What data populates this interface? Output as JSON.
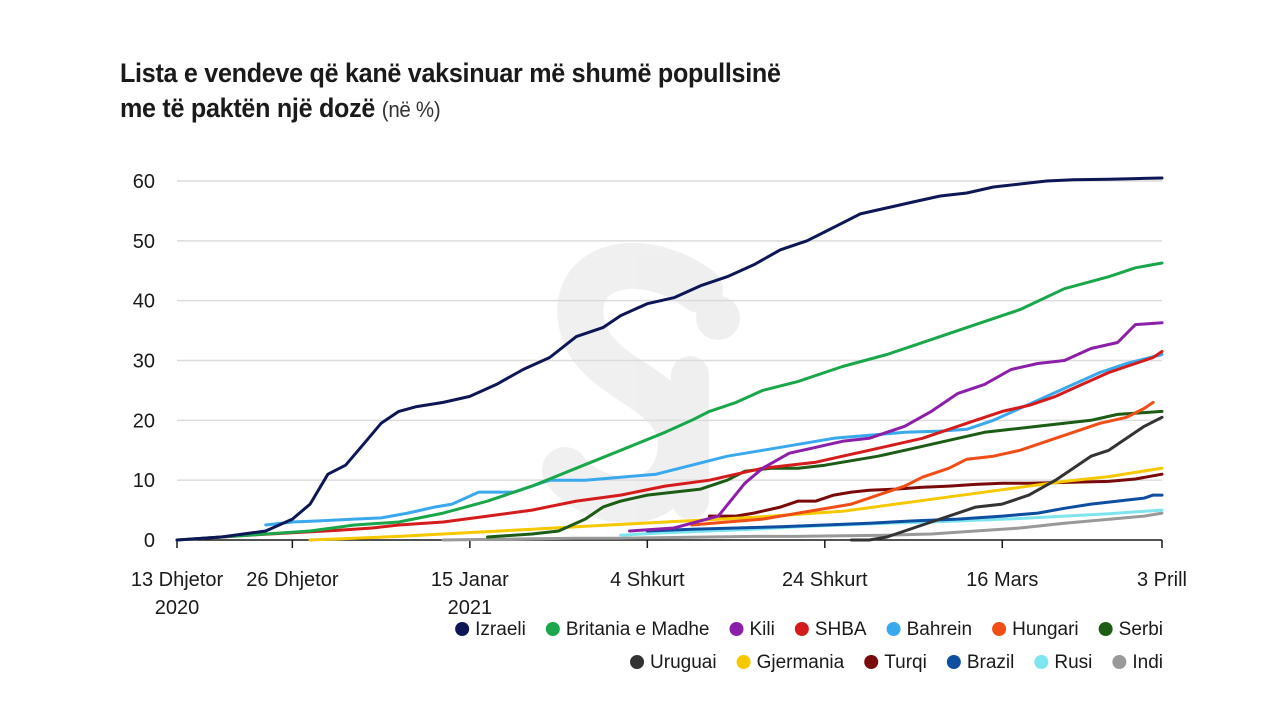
{
  "title": {
    "line1": "Lista e vendeve që kanë vaksinuar më shumë popullsinë",
    "line2": "me të paktën një dozë",
    "unit": "(në %)"
  },
  "chart_data": {
    "type": "line",
    "title": "Lista e vendeve që kanë vaksinuar më shumë popullsinë me të paktën një dozë (në %)",
    "ylim": [
      0,
      60
    ],
    "yticks": [
      0,
      10,
      20,
      30,
      40,
      50,
      60
    ],
    "xlim": [
      0,
      111
    ],
    "xticks": [
      {
        "x": 0,
        "label": [
          "13 Dhjetor",
          "2020"
        ]
      },
      {
        "x": 13,
        "label": [
          "26 Dhjetor"
        ]
      },
      {
        "x": 33,
        "label": [
          "15 Janar",
          "2021"
        ]
      },
      {
        "x": 53,
        "label": [
          "4 Shkurt"
        ]
      },
      {
        "x": 73,
        "label": [
          "24 Shkurt"
        ]
      },
      {
        "x": 93,
        "label": [
          "16 Mars"
        ]
      },
      {
        "x": 111,
        "label": [
          "3 Prill"
        ]
      }
    ],
    "grid": true,
    "legend": "bottom",
    "series": [
      {
        "name": "Izraeli",
        "color": "#0e1756",
        "points": [
          [
            0,
            0
          ],
          [
            5,
            0.5
          ],
          [
            10,
            1.5
          ],
          [
            13,
            3.5
          ],
          [
            15,
            6
          ],
          [
            17,
            11
          ],
          [
            19,
            12.5
          ],
          [
            21,
            16
          ],
          [
            23,
            19.5
          ],
          [
            25,
            21.5
          ],
          [
            27,
            22.3
          ],
          [
            30,
            23
          ],
          [
            33,
            24
          ],
          [
            36,
            26
          ],
          [
            39,
            28.5
          ],
          [
            42,
            30.5
          ],
          [
            45,
            34
          ],
          [
            48,
            35.5
          ],
          [
            50,
            37.5
          ],
          [
            53,
            39.5
          ],
          [
            56,
            40.5
          ],
          [
            59,
            42.5
          ],
          [
            62,
            44
          ],
          [
            65,
            46
          ],
          [
            68,
            48.5
          ],
          [
            71,
            50
          ],
          [
            73,
            51.5
          ],
          [
            75,
            53
          ],
          [
            77,
            54.5
          ],
          [
            80,
            55.5
          ],
          [
            83,
            56.5
          ],
          [
            86,
            57.5
          ],
          [
            89,
            58
          ],
          [
            92,
            59
          ],
          [
            95,
            59.5
          ],
          [
            98,
            60
          ],
          [
            101,
            60.2
          ],
          [
            105,
            60.3
          ],
          [
            108,
            60.4
          ],
          [
            111,
            60.5
          ]
        ]
      },
      {
        "name": "Britania e Madhe",
        "color": "#1aa64a",
        "points": [
          [
            0,
            0
          ],
          [
            5,
            0.5
          ],
          [
            10,
            1
          ],
          [
            15,
            1.5
          ],
          [
            20,
            2.5
          ],
          [
            25,
            3
          ],
          [
            30,
            4.5
          ],
          [
            35,
            6.5
          ],
          [
            40,
            9
          ],
          [
            45,
            12
          ],
          [
            50,
            15
          ],
          [
            55,
            18
          ],
          [
            58,
            20
          ],
          [
            60,
            21.5
          ],
          [
            63,
            23
          ],
          [
            66,
            25
          ],
          [
            70,
            26.5
          ],
          [
            75,
            29
          ],
          [
            80,
            31
          ],
          [
            85,
            33.5
          ],
          [
            90,
            36
          ],
          [
            95,
            38.5
          ],
          [
            100,
            42
          ],
          [
            105,
            44
          ],
          [
            108,
            45.5
          ],
          [
            111,
            46.3
          ]
        ]
      },
      {
        "name": "Kili",
        "color": "#8c1fa8",
        "points": [
          [
            51,
            1.5
          ],
          [
            56,
            2
          ],
          [
            61,
            4
          ],
          [
            64,
            9.5
          ],
          [
            66,
            12
          ],
          [
            69,
            14.5
          ],
          [
            72,
            15.5
          ],
          [
            75,
            16.5
          ],
          [
            78,
            17
          ],
          [
            82,
            19
          ],
          [
            85,
            21.5
          ],
          [
            88,
            24.5
          ],
          [
            91,
            26
          ],
          [
            94,
            28.5
          ],
          [
            97,
            29.5
          ],
          [
            100,
            30
          ],
          [
            103,
            32
          ],
          [
            106,
            33
          ],
          [
            108,
            36
          ],
          [
            111,
            36.3
          ]
        ]
      },
      {
        "name": "SHBA",
        "color": "#d41c1c",
        "points": [
          [
            3,
            0.3
          ],
          [
            8,
            0.8
          ],
          [
            13,
            1.2
          ],
          [
            18,
            1.6
          ],
          [
            22,
            2
          ],
          [
            25,
            2.5
          ],
          [
            30,
            3
          ],
          [
            35,
            4
          ],
          [
            40,
            5
          ],
          [
            45,
            6.5
          ],
          [
            50,
            7.5
          ],
          [
            55,
            9
          ],
          [
            60,
            10
          ],
          [
            63,
            11
          ],
          [
            66,
            12
          ],
          [
            69,
            12.5
          ],
          [
            72,
            13
          ],
          [
            75,
            14
          ],
          [
            78,
            15
          ],
          [
            81,
            16
          ],
          [
            84,
            17
          ],
          [
            87,
            18.5
          ],
          [
            90,
            20
          ],
          [
            93,
            21.5
          ],
          [
            96,
            22.5
          ],
          [
            99,
            24
          ],
          [
            102,
            26
          ],
          [
            105,
            28
          ],
          [
            108,
            29.5
          ],
          [
            110,
            30.5
          ],
          [
            111,
            31.5
          ]
        ]
      },
      {
        "name": "Bahrein",
        "color": "#3aa8ec",
        "points": [
          [
            10,
            2.5
          ],
          [
            13,
            3
          ],
          [
            16,
            3.2
          ],
          [
            20,
            3.5
          ],
          [
            23,
            3.7
          ],
          [
            26,
            4.5
          ],
          [
            29,
            5.5
          ],
          [
            31,
            6
          ],
          [
            34,
            8
          ],
          [
            38,
            8
          ],
          [
            42,
            10
          ],
          [
            46,
            10
          ],
          [
            50,
            10.5
          ],
          [
            54,
            11
          ],
          [
            58,
            12.5
          ],
          [
            62,
            14
          ],
          [
            66,
            15
          ],
          [
            70,
            16
          ],
          [
            74,
            17
          ],
          [
            78,
            17.5
          ],
          [
            82,
            18
          ],
          [
            86,
            18.2
          ],
          [
            89,
            18.5
          ],
          [
            92,
            20
          ],
          [
            95,
            22
          ],
          [
            98,
            24
          ],
          [
            101,
            26
          ],
          [
            104,
            28
          ],
          [
            107,
            29.5
          ],
          [
            111,
            31
          ]
        ]
      },
      {
        "name": "Hungari",
        "color": "#f14d17",
        "points": [
          [
            58,
            2.5
          ],
          [
            62,
            3
          ],
          [
            66,
            3.5
          ],
          [
            68,
            4
          ],
          [
            70,
            4.5
          ],
          [
            72,
            5
          ],
          [
            74,
            5.5
          ],
          [
            76,
            6
          ],
          [
            78,
            7
          ],
          [
            80,
            8
          ],
          [
            82,
            9
          ],
          [
            84,
            10.5
          ],
          [
            87,
            12
          ],
          [
            89,
            13.5
          ],
          [
            92,
            14
          ],
          [
            95,
            15
          ],
          [
            98,
            16.5
          ],
          [
            101,
            18
          ],
          [
            104,
            19.5
          ],
          [
            107,
            20.5
          ],
          [
            109,
            22
          ],
          [
            110,
            23
          ]
        ]
      },
      {
        "name": "Serbi",
        "color": "#1c5c14",
        "points": [
          [
            35,
            0.5
          ],
          [
            40,
            1
          ],
          [
            43,
            1.5
          ],
          [
            46,
            3.5
          ],
          [
            48,
            5.5
          ],
          [
            50,
            6.5
          ],
          [
            53,
            7.5
          ],
          [
            56,
            8
          ],
          [
            59,
            8.5
          ],
          [
            62,
            10
          ],
          [
            64,
            11.5
          ],
          [
            67,
            12
          ],
          [
            70,
            12
          ],
          [
            73,
            12.5
          ],
          [
            75,
            13
          ],
          [
            77,
            13.5
          ],
          [
            79,
            14
          ],
          [
            82,
            15
          ],
          [
            85,
            16
          ],
          [
            88,
            17
          ],
          [
            91,
            18
          ],
          [
            94,
            18.5
          ],
          [
            97,
            19
          ],
          [
            100,
            19.5
          ],
          [
            103,
            20
          ],
          [
            106,
            21
          ],
          [
            109,
            21.3
          ],
          [
            111,
            21.5
          ]
        ]
      },
      {
        "name": "Uruguai",
        "color": "#333333",
        "points": [
          [
            76,
            0
          ],
          [
            78,
            0
          ],
          [
            80,
            0.5
          ],
          [
            83,
            2
          ],
          [
            85,
            3
          ],
          [
            88,
            4.5
          ],
          [
            90,
            5.5
          ],
          [
            93,
            6
          ],
          [
            96,
            7.5
          ],
          [
            99,
            10
          ],
          [
            101,
            12
          ],
          [
            103,
            14
          ],
          [
            105,
            15
          ],
          [
            107,
            17
          ],
          [
            109,
            19
          ],
          [
            111,
            20.5
          ]
        ]
      },
      {
        "name": "Gjermania",
        "color": "#f5c800",
        "points": [
          [
            15,
            0
          ],
          [
            20,
            0.3
          ],
          [
            25,
            0.6
          ],
          [
            30,
            1
          ],
          [
            35,
            1.4
          ],
          [
            40,
            1.8
          ],
          [
            45,
            2.2
          ],
          [
            50,
            2.6
          ],
          [
            55,
            3
          ],
          [
            60,
            3.4
          ],
          [
            65,
            3.8
          ],
          [
            70,
            4.3
          ],
          [
            75,
            4.8
          ],
          [
            80,
            5.8
          ],
          [
            85,
            6.8
          ],
          [
            90,
            7.8
          ],
          [
            95,
            8.8
          ],
          [
            100,
            9.8
          ],
          [
            105,
            10.6
          ],
          [
            108,
            11.3
          ],
          [
            111,
            12
          ]
        ]
      },
      {
        "name": "Turqi",
        "color": "#7a0a0a",
        "points": [
          [
            60,
            4
          ],
          [
            63,
            4
          ],
          [
            65,
            4.5
          ],
          [
            68,
            5.5
          ],
          [
            70,
            6.5
          ],
          [
            72,
            6.5
          ],
          [
            74,
            7.5
          ],
          [
            76,
            8
          ],
          [
            78,
            8.3
          ],
          [
            81,
            8.5
          ],
          [
            84,
            8.8
          ],
          [
            87,
            9
          ],
          [
            90,
            9.3
          ],
          [
            93,
            9.5
          ],
          [
            96,
            9.5
          ],
          [
            99,
            9.6
          ],
          [
            102,
            9.7
          ],
          [
            105,
            9.8
          ],
          [
            108,
            10.2
          ],
          [
            111,
            11
          ]
        ]
      },
      {
        "name": "Brazil",
        "color": "#0e4ea0",
        "points": [
          [
            53,
            1.5
          ],
          [
            58,
            1.8
          ],
          [
            63,
            2
          ],
          [
            68,
            2.2
          ],
          [
            73,
            2.5
          ],
          [
            78,
            2.8
          ],
          [
            83,
            3.2
          ],
          [
            88,
            3.5
          ],
          [
            93,
            4
          ],
          [
            97,
            4.5
          ],
          [
            100,
            5.3
          ],
          [
            103,
            6
          ],
          [
            106,
            6.5
          ],
          [
            109,
            7
          ],
          [
            110,
            7.5
          ],
          [
            111,
            7.5
          ]
        ]
      },
      {
        "name": "Rusi",
        "color": "#7ee5ee",
        "points": [
          [
            50,
            0.8
          ],
          [
            55,
            1.2
          ],
          [
            60,
            1.5
          ],
          [
            65,
            1.8
          ],
          [
            70,
            2.2
          ],
          [
            75,
            2.5
          ],
          [
            80,
            2.8
          ],
          [
            85,
            3
          ],
          [
            90,
            3.3
          ],
          [
            95,
            3.6
          ],
          [
            100,
            4
          ],
          [
            105,
            4.4
          ],
          [
            108,
            4.7
          ],
          [
            111,
            5
          ]
        ]
      },
      {
        "name": "Indi",
        "color": "#999999",
        "points": [
          [
            30,
            0
          ],
          [
            35,
            0.1
          ],
          [
            40,
            0.2
          ],
          [
            45,
            0.3
          ],
          [
            50,
            0.3
          ],
          [
            55,
            0.4
          ],
          [
            60,
            0.5
          ],
          [
            65,
            0.6
          ],
          [
            70,
            0.6
          ],
          [
            75,
            0.7
          ],
          [
            80,
            0.8
          ],
          [
            85,
            1
          ],
          [
            90,
            1.5
          ],
          [
            95,
            2
          ],
          [
            100,
            2.8
          ],
          [
            103,
            3.2
          ],
          [
            106,
            3.6
          ],
          [
            109,
            4
          ],
          [
            111,
            4.5
          ]
        ]
      }
    ]
  }
}
